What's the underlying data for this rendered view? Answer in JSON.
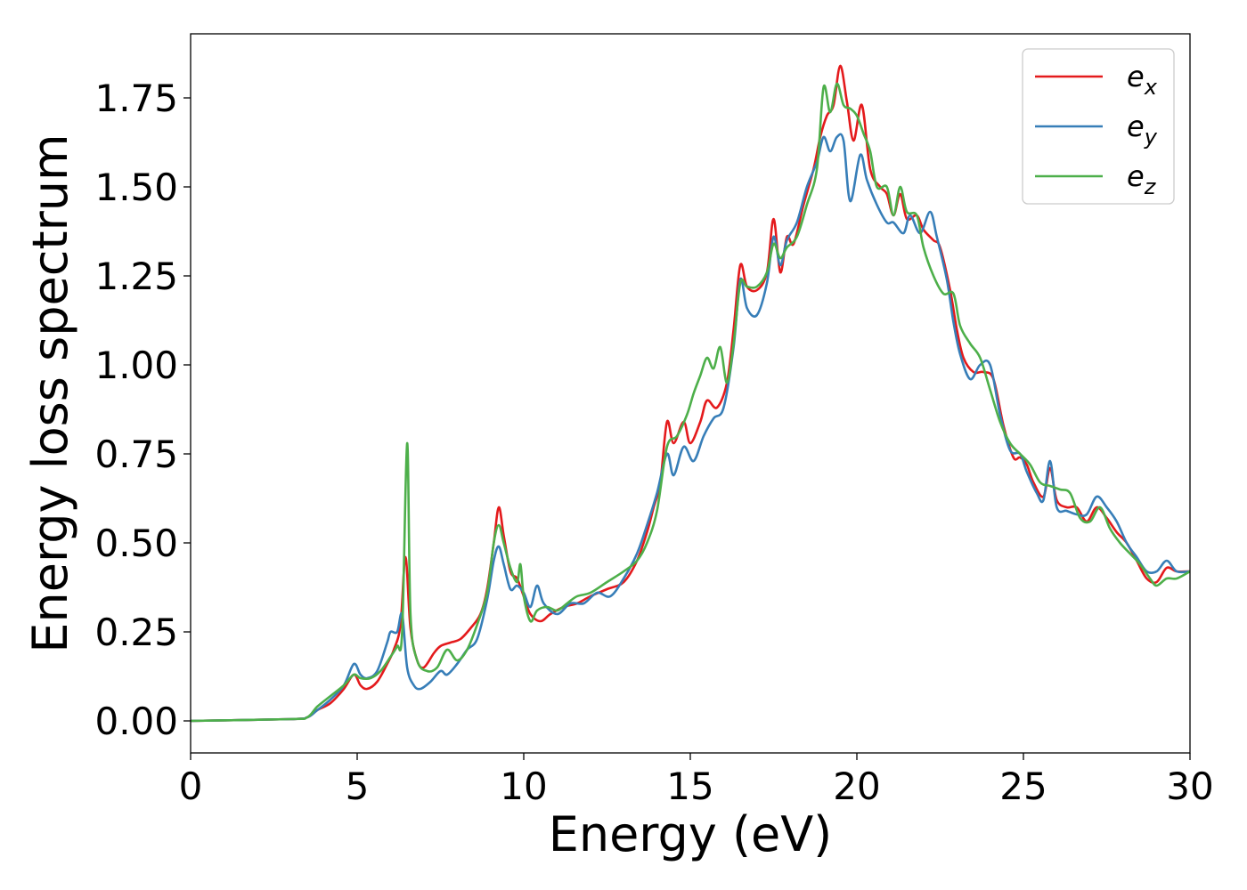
{
  "chart_data": {
    "type": "line",
    "title": "",
    "xlabel": "Energy (eV)",
    "ylabel": "Energy loss spectrum",
    "xlim": [
      0,
      30
    ],
    "ylim": [
      -0.09,
      1.93
    ],
    "grid": false,
    "legend_position": "top-right",
    "x_ticks": [
      0,
      5,
      10,
      15,
      20,
      25,
      30
    ],
    "x_tick_labels": [
      "0",
      "5",
      "10",
      "15",
      "20",
      "25",
      "30"
    ],
    "y_ticks": [
      0,
      0.25,
      0.5,
      0.75,
      1.0,
      1.25,
      1.5,
      1.75
    ],
    "y_tick_labels": [
      "0.00",
      "0.25",
      "0.50",
      "0.75",
      "1.00",
      "1.25",
      "1.50",
      "1.75"
    ],
    "series": [
      {
        "name": "e_x",
        "legend_base": "e",
        "legend_sub": "x",
        "color": "#e41a1c",
        "points": [
          [
            0,
            0.0
          ],
          [
            3.0,
            0.005
          ],
          [
            3.5,
            0.01
          ],
          [
            3.8,
            0.03
          ],
          [
            4.2,
            0.05
          ],
          [
            4.6,
            0.09
          ],
          [
            4.9,
            0.13
          ],
          [
            5.1,
            0.1
          ],
          [
            5.3,
            0.09
          ],
          [
            5.6,
            0.11
          ],
          [
            5.9,
            0.16
          ],
          [
            6.1,
            0.2
          ],
          [
            6.3,
            0.27
          ],
          [
            6.45,
            0.46
          ],
          [
            6.6,
            0.26
          ],
          [
            6.8,
            0.17
          ],
          [
            7.0,
            0.15
          ],
          [
            7.3,
            0.19
          ],
          [
            7.5,
            0.21
          ],
          [
            7.8,
            0.22
          ],
          [
            8.1,
            0.23
          ],
          [
            8.4,
            0.26
          ],
          [
            8.7,
            0.3
          ],
          [
            8.9,
            0.37
          ],
          [
            9.1,
            0.5
          ],
          [
            9.25,
            0.6
          ],
          [
            9.4,
            0.52
          ],
          [
            9.6,
            0.42
          ],
          [
            9.8,
            0.4
          ],
          [
            10.0,
            0.35
          ],
          [
            10.2,
            0.3
          ],
          [
            10.5,
            0.28
          ],
          [
            10.8,
            0.3
          ],
          [
            11.2,
            0.32
          ],
          [
            11.6,
            0.33
          ],
          [
            12.0,
            0.35
          ],
          [
            12.5,
            0.37
          ],
          [
            13.0,
            0.39
          ],
          [
            13.4,
            0.45
          ],
          [
            13.7,
            0.53
          ],
          [
            13.9,
            0.6
          ],
          [
            14.1,
            0.67
          ],
          [
            14.3,
            0.84
          ],
          [
            14.5,
            0.78
          ],
          [
            14.8,
            0.84
          ],
          [
            15.0,
            0.78
          ],
          [
            15.3,
            0.84
          ],
          [
            15.5,
            0.9
          ],
          [
            15.8,
            0.88
          ],
          [
            16.1,
            0.95
          ],
          [
            16.3,
            1.1
          ],
          [
            16.5,
            1.28
          ],
          [
            16.7,
            1.22
          ],
          [
            17.0,
            1.21
          ],
          [
            17.3,
            1.26
          ],
          [
            17.5,
            1.41
          ],
          [
            17.7,
            1.26
          ],
          [
            17.9,
            1.36
          ],
          [
            18.1,
            1.34
          ],
          [
            18.4,
            1.45
          ],
          [
            18.7,
            1.55
          ],
          [
            18.9,
            1.64
          ],
          [
            19.1,
            1.7
          ],
          [
            19.3,
            1.73
          ],
          [
            19.5,
            1.84
          ],
          [
            19.7,
            1.74
          ],
          [
            19.9,
            1.63
          ],
          [
            20.15,
            1.73
          ],
          [
            20.4,
            1.55
          ],
          [
            20.7,
            1.5
          ],
          [
            20.9,
            1.48
          ],
          [
            21.1,
            1.42
          ],
          [
            21.3,
            1.48
          ],
          [
            21.5,
            1.41
          ],
          [
            21.8,
            1.42
          ],
          [
            22.0,
            1.38
          ],
          [
            22.3,
            1.35
          ],
          [
            22.5,
            1.33
          ],
          [
            22.8,
            1.21
          ],
          [
            23.0,
            1.1
          ],
          [
            23.2,
            1.02
          ],
          [
            23.5,
            0.98
          ],
          [
            23.8,
            0.98
          ],
          [
            24.1,
            0.96
          ],
          [
            24.4,
            0.83
          ],
          [
            24.7,
            0.74
          ],
          [
            24.9,
            0.74
          ],
          [
            25.1,
            0.72
          ],
          [
            25.3,
            0.67
          ],
          [
            25.6,
            0.63
          ],
          [
            25.8,
            0.71
          ],
          [
            26.0,
            0.62
          ],
          [
            26.3,
            0.6
          ],
          [
            26.6,
            0.6
          ],
          [
            26.9,
            0.56
          ],
          [
            27.2,
            0.6
          ],
          [
            27.5,
            0.57
          ],
          [
            27.8,
            0.53
          ],
          [
            28.1,
            0.5
          ],
          [
            28.4,
            0.45
          ],
          [
            28.7,
            0.4
          ],
          [
            29.0,
            0.39
          ],
          [
            29.3,
            0.43
          ],
          [
            29.6,
            0.42
          ],
          [
            30.0,
            0.42
          ]
        ]
      },
      {
        "name": "e_y",
        "legend_base": "e",
        "legend_sub": "y",
        "color": "#377eb8",
        "points": [
          [
            0,
            0.0
          ],
          [
            3.0,
            0.005
          ],
          [
            3.5,
            0.01
          ],
          [
            3.8,
            0.03
          ],
          [
            4.2,
            0.06
          ],
          [
            4.6,
            0.1
          ],
          [
            4.9,
            0.16
          ],
          [
            5.1,
            0.13
          ],
          [
            5.3,
            0.12
          ],
          [
            5.6,
            0.14
          ],
          [
            5.9,
            0.22
          ],
          [
            6.0,
            0.25
          ],
          [
            6.2,
            0.25
          ],
          [
            6.35,
            0.3
          ],
          [
            6.5,
            0.15
          ],
          [
            6.7,
            0.1
          ],
          [
            6.9,
            0.09
          ],
          [
            7.2,
            0.11
          ],
          [
            7.5,
            0.14
          ],
          [
            7.7,
            0.13
          ],
          [
            8.0,
            0.16
          ],
          [
            8.3,
            0.2
          ],
          [
            8.6,
            0.23
          ],
          [
            8.9,
            0.34
          ],
          [
            9.1,
            0.45
          ],
          [
            9.25,
            0.49
          ],
          [
            9.4,
            0.44
          ],
          [
            9.6,
            0.37
          ],
          [
            9.8,
            0.38
          ],
          [
            10.0,
            0.36
          ],
          [
            10.2,
            0.32
          ],
          [
            10.4,
            0.38
          ],
          [
            10.6,
            0.33
          ],
          [
            11.0,
            0.3
          ],
          [
            11.4,
            0.33
          ],
          [
            11.8,
            0.33
          ],
          [
            12.2,
            0.36
          ],
          [
            12.6,
            0.35
          ],
          [
            13.0,
            0.4
          ],
          [
            13.4,
            0.47
          ],
          [
            13.7,
            0.55
          ],
          [
            14.0,
            0.64
          ],
          [
            14.3,
            0.75
          ],
          [
            14.5,
            0.69
          ],
          [
            14.8,
            0.77
          ],
          [
            15.1,
            0.73
          ],
          [
            15.4,
            0.8
          ],
          [
            15.7,
            0.85
          ],
          [
            16.0,
            0.88
          ],
          [
            16.3,
            1.05
          ],
          [
            16.5,
            1.24
          ],
          [
            16.7,
            1.16
          ],
          [
            17.0,
            1.14
          ],
          [
            17.3,
            1.23
          ],
          [
            17.5,
            1.36
          ],
          [
            17.7,
            1.28
          ],
          [
            17.9,
            1.35
          ],
          [
            18.2,
            1.4
          ],
          [
            18.5,
            1.5
          ],
          [
            18.8,
            1.57
          ],
          [
            19.0,
            1.64
          ],
          [
            19.2,
            1.6
          ],
          [
            19.4,
            1.64
          ],
          [
            19.6,
            1.63
          ],
          [
            19.8,
            1.46
          ],
          [
            20.1,
            1.59
          ],
          [
            20.3,
            1.52
          ],
          [
            20.6,
            1.45
          ],
          [
            20.9,
            1.4
          ],
          [
            21.1,
            1.4
          ],
          [
            21.4,
            1.37
          ],
          [
            21.6,
            1.42
          ],
          [
            21.9,
            1.37
          ],
          [
            22.2,
            1.43
          ],
          [
            22.4,
            1.36
          ],
          [
            22.7,
            1.24
          ],
          [
            22.9,
            1.12
          ],
          [
            23.1,
            1.03
          ],
          [
            23.4,
            0.96
          ],
          [
            23.7,
            1.0
          ],
          [
            24.0,
            1.0
          ],
          [
            24.3,
            0.86
          ],
          [
            24.6,
            0.76
          ],
          [
            24.9,
            0.75
          ],
          [
            25.1,
            0.7
          ],
          [
            25.4,
            0.64
          ],
          [
            25.6,
            0.62
          ],
          [
            25.8,
            0.73
          ],
          [
            26.0,
            0.6
          ],
          [
            26.3,
            0.59
          ],
          [
            26.6,
            0.58
          ],
          [
            26.9,
            0.58
          ],
          [
            27.2,
            0.63
          ],
          [
            27.5,
            0.6
          ],
          [
            27.8,
            0.56
          ],
          [
            28.1,
            0.5
          ],
          [
            28.4,
            0.46
          ],
          [
            28.7,
            0.42
          ],
          [
            29.0,
            0.42
          ],
          [
            29.3,
            0.45
          ],
          [
            29.6,
            0.42
          ],
          [
            30.0,
            0.42
          ]
        ]
      },
      {
        "name": "e_z",
        "legend_base": "e",
        "legend_sub": "z",
        "color": "#4daf4a",
        "points": [
          [
            0,
            0.0
          ],
          [
            3.0,
            0.005
          ],
          [
            3.5,
            0.01
          ],
          [
            3.8,
            0.04
          ],
          [
            4.2,
            0.07
          ],
          [
            4.6,
            0.1
          ],
          [
            4.9,
            0.13
          ],
          [
            5.1,
            0.12
          ],
          [
            5.4,
            0.12
          ],
          [
            5.7,
            0.14
          ],
          [
            6.0,
            0.18
          ],
          [
            6.2,
            0.21
          ],
          [
            6.35,
            0.25
          ],
          [
            6.5,
            0.78
          ],
          [
            6.6,
            0.3
          ],
          [
            6.8,
            0.17
          ],
          [
            7.1,
            0.14
          ],
          [
            7.4,
            0.15
          ],
          [
            7.7,
            0.2
          ],
          [
            8.0,
            0.17
          ],
          [
            8.3,
            0.2
          ],
          [
            8.6,
            0.27
          ],
          [
            8.9,
            0.36
          ],
          [
            9.1,
            0.5
          ],
          [
            9.25,
            0.55
          ],
          [
            9.4,
            0.5
          ],
          [
            9.6,
            0.43
          ],
          [
            9.8,
            0.39
          ],
          [
            9.9,
            0.44
          ],
          [
            10.0,
            0.35
          ],
          [
            10.2,
            0.28
          ],
          [
            10.4,
            0.31
          ],
          [
            10.7,
            0.32
          ],
          [
            11.0,
            0.31
          ],
          [
            11.3,
            0.33
          ],
          [
            11.6,
            0.35
          ],
          [
            12.0,
            0.36
          ],
          [
            12.5,
            0.39
          ],
          [
            13.0,
            0.42
          ],
          [
            13.4,
            0.45
          ],
          [
            13.7,
            0.5
          ],
          [
            14.0,
            0.59
          ],
          [
            14.3,
            0.77
          ],
          [
            14.6,
            0.8
          ],
          [
            14.9,
            0.86
          ],
          [
            15.1,
            0.92
          ],
          [
            15.3,
            0.97
          ],
          [
            15.5,
            1.02
          ],
          [
            15.7,
            0.99
          ],
          [
            15.9,
            1.05
          ],
          [
            16.1,
            0.95
          ],
          [
            16.3,
            1.06
          ],
          [
            16.5,
            1.23
          ],
          [
            16.7,
            1.22
          ],
          [
            17.0,
            1.22
          ],
          [
            17.3,
            1.26
          ],
          [
            17.5,
            1.34
          ],
          [
            17.7,
            1.3
          ],
          [
            17.9,
            1.33
          ],
          [
            18.2,
            1.36
          ],
          [
            18.5,
            1.45
          ],
          [
            18.8,
            1.55
          ],
          [
            19.0,
            1.78
          ],
          [
            19.2,
            1.71
          ],
          [
            19.4,
            1.79
          ],
          [
            19.6,
            1.73
          ],
          [
            19.8,
            1.72
          ],
          [
            20.0,
            1.7
          ],
          [
            20.2,
            1.65
          ],
          [
            20.4,
            1.6
          ],
          [
            20.6,
            1.5
          ],
          [
            20.9,
            1.5
          ],
          [
            21.1,
            1.42
          ],
          [
            21.3,
            1.5
          ],
          [
            21.5,
            1.43
          ],
          [
            21.8,
            1.42
          ],
          [
            22.0,
            1.33
          ],
          [
            22.3,
            1.25
          ],
          [
            22.6,
            1.2
          ],
          [
            22.9,
            1.2
          ],
          [
            23.1,
            1.11
          ],
          [
            23.4,
            1.06
          ],
          [
            23.7,
            1.02
          ],
          [
            24.0,
            0.93
          ],
          [
            24.3,
            0.84
          ],
          [
            24.6,
            0.78
          ],
          [
            24.9,
            0.75
          ],
          [
            25.2,
            0.72
          ],
          [
            25.5,
            0.67
          ],
          [
            25.8,
            0.66
          ],
          [
            26.1,
            0.65
          ],
          [
            26.4,
            0.64
          ],
          [
            26.7,
            0.57
          ],
          [
            27.0,
            0.56
          ],
          [
            27.3,
            0.6
          ],
          [
            27.6,
            0.54
          ],
          [
            27.9,
            0.5
          ],
          [
            28.2,
            0.47
          ],
          [
            28.5,
            0.44
          ],
          [
            28.8,
            0.4
          ],
          [
            29.0,
            0.38
          ],
          [
            29.3,
            0.4
          ],
          [
            29.6,
            0.4
          ],
          [
            30.0,
            0.42
          ]
        ]
      }
    ]
  }
}
